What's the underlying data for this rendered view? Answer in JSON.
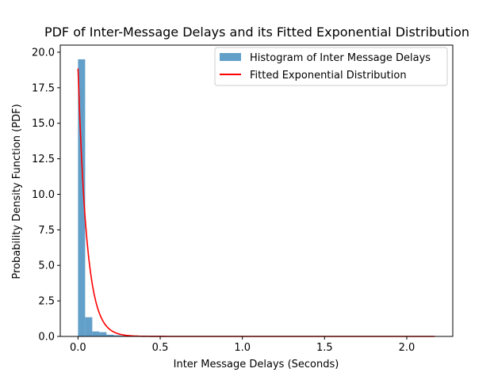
{
  "chart_data": {
    "type": "bar",
    "title": "PDF of Inter-Message Delays and its Fitted Exponential Distribution",
    "xlabel": "Inter Message Delays (Seconds)",
    "ylabel": "Probability Density Function (PDF)",
    "xlim": [
      -0.108,
      2.28
    ],
    "ylim": [
      0,
      20.5
    ],
    "x_ticks": [
      0.0,
      0.5,
      1.0,
      1.5,
      2.0
    ],
    "x_tick_labels": [
      "0.0",
      "0.5",
      "1.0",
      "1.5",
      "2.0"
    ],
    "y_ticks": [
      0.0,
      2.5,
      5.0,
      7.5,
      10.0,
      12.5,
      15.0,
      17.5,
      20.0
    ],
    "y_tick_labels": [
      "0.0",
      "2.5",
      "5.0",
      "7.5",
      "10.0",
      "12.5",
      "15.0",
      "17.5",
      "20.0"
    ],
    "legend_position": "top-right",
    "histogram": {
      "name": "Histogram of Inter Message Delays",
      "color": "#1f77b4",
      "alpha": 0.7,
      "bin_width": 0.0434,
      "bin_starts": [
        0.0,
        0.0434,
        0.0868,
        0.1302,
        0.1736,
        0.217,
        0.2604,
        0.3038,
        0.3472,
        0.3906,
        0.434,
        0.4774,
        0.5208,
        0.5642,
        0.6076,
        0.651,
        0.6944,
        0.7378,
        0.7812,
        0.8246,
        0.868,
        0.9114,
        0.9548,
        0.9982,
        1.0416,
        1.085,
        1.1284,
        1.1718,
        1.2152,
        1.2586,
        1.302,
        1.3454,
        1.3888,
        1.4322,
        1.4756,
        1.519,
        1.5624,
        1.6058,
        1.6492,
        1.6926,
        1.736,
        1.7794,
        1.8228,
        1.8662,
        1.9096,
        1.953,
        1.9964,
        2.0398,
        2.0832,
        2.1266
      ],
      "values": [
        19.5,
        1.35,
        0.35,
        0.3,
        0.12,
        0.08,
        0.05,
        0.04,
        0.03,
        0.02,
        0.02,
        0.015,
        0.01,
        0.01,
        0.01,
        0.008,
        0.006,
        0.005,
        0.004,
        0.004,
        0.003,
        0.003,
        0.002,
        0.002,
        0.002,
        0.002,
        0.001,
        0.001,
        0.001,
        0.001,
        0.001,
        0.001,
        0.001,
        0.001,
        0.001,
        0.001,
        0.001,
        0.001,
        0.001,
        0.001,
        0.001,
        0.001,
        0.001,
        0.001,
        0.001,
        0.001,
        0.001,
        0.001,
        0.001,
        0.001
      ]
    },
    "fitted": {
      "name": "Fitted Exponential Distribution",
      "color": "#ff0000",
      "rate": 18.85,
      "x_start": 0.0,
      "x_end": 2.17
    }
  }
}
